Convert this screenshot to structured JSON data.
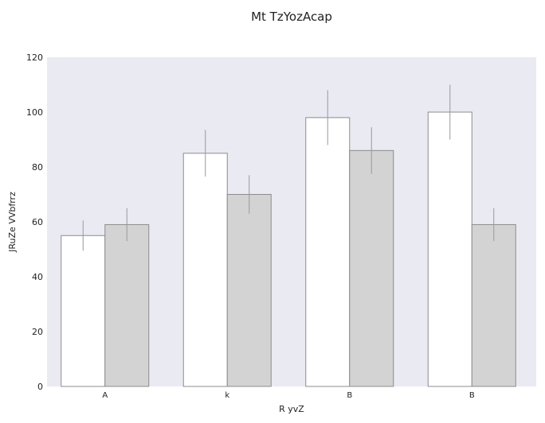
{
  "chart_data": {
    "type": "bar",
    "title": "Mt TzYozAcap",
    "xlabel": "R yvZ",
    "ylabel": "JRuZe VVbfrrz",
    "categories": [
      "A",
      "k",
      "B",
      "B"
    ],
    "ylim": [
      0,
      120
    ],
    "yticks": [
      0,
      20,
      40,
      60,
      80,
      100,
      120
    ],
    "grid": false,
    "legend": "none",
    "series": [
      {
        "values": [
          55,
          85,
          98,
          100
        ],
        "errors": [
          5.5,
          8.5,
          10,
          10
        ],
        "color": "#ffffff"
      },
      {
        "values": [
          59,
          70,
          86,
          59
        ],
        "errors": [
          6,
          7,
          8.5,
          6
        ],
        "color": "#d3d3d3"
      }
    ],
    "background": "#eaeaf2"
  }
}
